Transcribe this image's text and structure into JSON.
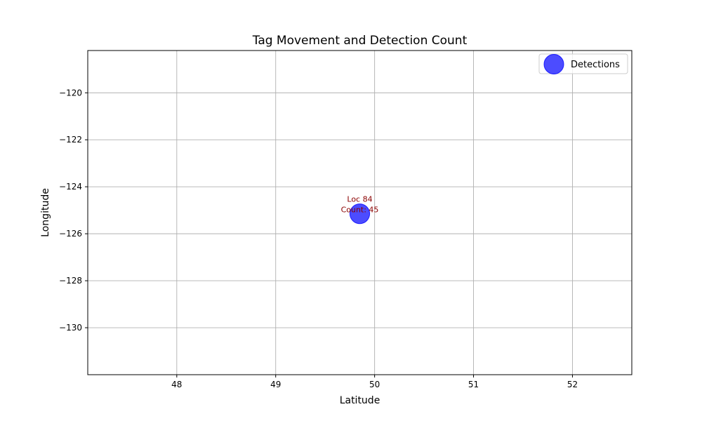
{
  "chart_data": {
    "type": "scatter",
    "title": "Tag Movement and Detection Count",
    "xlabel": "Latitude",
    "ylabel": "Longitude",
    "xlim": [
      47.1,
      52.6
    ],
    "ylim": [
      -132.0,
      -118.2
    ],
    "x_ticks": [
      48,
      49,
      50,
      51,
      52
    ],
    "y_ticks": [
      -120,
      -122,
      -124,
      -126,
      -128,
      -130
    ],
    "y_tick_labels": [
      "−120",
      "−122",
      "−124",
      "−126",
      "−128",
      "−130"
    ],
    "grid": true,
    "legend_position": "top-right",
    "series": [
      {
        "name": "Detections",
        "color": "#0000ff",
        "points": [
          {
            "x": 49.85,
            "y": -125.15,
            "count": 45,
            "label_line1": "Loc 84",
            "label_line2": "Count: 45"
          }
        ]
      }
    ],
    "annotation_color": "#8b0000"
  }
}
